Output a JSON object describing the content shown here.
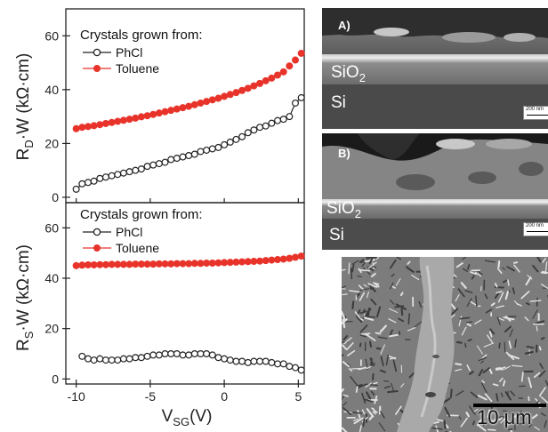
{
  "chart_data": [
    {
      "type": "scatter",
      "panel": "top",
      "ylabel_main": "R",
      "ylabel_sub": "D",
      "ylabel_rest": "·W (kΩ·cm)",
      "ylim": [
        -2,
        70
      ],
      "yticks": [
        0,
        20,
        40,
        60
      ],
      "xlim": [
        -10.7,
        5.4
      ],
      "xticks": [
        -10,
        -5,
        0,
        5
      ],
      "grid": false,
      "legend_position": "top-left",
      "legend_title": "Crystals grown from:",
      "series": [
        {
          "name": "PhCl",
          "marker": "open-circle",
          "color": "#222222",
          "x": [
            -10.0,
            -9.6,
            -9.2,
            -8.8,
            -8.4,
            -8.0,
            -7.6,
            -7.2,
            -6.8,
            -6.4,
            -6.0,
            -5.6,
            -5.2,
            -4.8,
            -4.4,
            -4.0,
            -3.6,
            -3.2,
            -2.8,
            -2.4,
            -2.0,
            -1.6,
            -1.2,
            -0.8,
            -0.4,
            0.0,
            0.4,
            0.8,
            1.2,
            1.6,
            2.0,
            2.4,
            2.8,
            3.2,
            3.6,
            4.0,
            4.4,
            4.8,
            5.2
          ],
          "y": [
            3,
            5,
            5.5,
            6,
            7,
            7.5,
            8,
            8.5,
            9,
            9.5,
            10,
            10.5,
            11.5,
            12,
            12.5,
            13,
            14,
            14.5,
            15,
            15.5,
            16,
            17,
            17.5,
            18,
            18.5,
            19.5,
            20.5,
            21.5,
            22.5,
            24,
            25,
            26,
            26.5,
            27.5,
            28.5,
            29,
            30,
            35,
            37
          ]
        },
        {
          "name": "Toluene",
          "marker": "filled-circle",
          "color": "#e8332a",
          "x": [
            -10.0,
            -9.6,
            -9.2,
            -8.8,
            -8.4,
            -8.0,
            -7.6,
            -7.2,
            -6.8,
            -6.4,
            -6.0,
            -5.6,
            -5.2,
            -4.8,
            -4.4,
            -4.0,
            -3.6,
            -3.2,
            -2.8,
            -2.4,
            -2.0,
            -1.6,
            -1.2,
            -0.8,
            -0.4,
            0.0,
            0.4,
            0.8,
            1.2,
            1.6,
            2.0,
            2.4,
            2.8,
            3.2,
            3.6,
            4.0,
            4.4,
            4.8,
            5.2
          ],
          "y": [
            25.5,
            26,
            26.3,
            26.6,
            27,
            27.4,
            27.8,
            28.2,
            28.6,
            29,
            29.4,
            29.9,
            30.3,
            30.8,
            31.3,
            31.8,
            32.3,
            32.8,
            33.3,
            33.8,
            34.4,
            35,
            35.6,
            36.2,
            36.8,
            37.5,
            38.2,
            38.9,
            39.7,
            40.5,
            41.4,
            42.3,
            43.3,
            44.3,
            45.4,
            46.6,
            48.8,
            51,
            53.5
          ]
        }
      ]
    },
    {
      "type": "scatter",
      "panel": "bottom",
      "ylabel_main": "R",
      "ylabel_sub": "S",
      "ylabel_rest": "·W (kΩ·cm)",
      "xlabel_main": "V",
      "xlabel_sub": "SG",
      "xlabel_rest": "(V)",
      "ylim": [
        -2,
        70
      ],
      "yticks": [
        0,
        20,
        40,
        60
      ],
      "xlim": [
        -10.7,
        5.4
      ],
      "xticks": [
        -10,
        -5,
        0,
        5
      ],
      "xticklabels": [
        "-10",
        "-5",
        "0",
        "5"
      ],
      "grid": false,
      "legend_position": "top-left",
      "legend_title": "Crystals grown from:",
      "series": [
        {
          "name": "PhCl",
          "marker": "open-circle",
          "color": "#222222",
          "x": [
            -9.6,
            -9.2,
            -8.8,
            -8.4,
            -8.0,
            -7.6,
            -7.2,
            -6.8,
            -6.4,
            -6.0,
            -5.6,
            -5.2,
            -4.8,
            -4.4,
            -4.0,
            -3.6,
            -3.2,
            -2.8,
            -2.4,
            -2.0,
            -1.6,
            -1.2,
            -0.8,
            -0.4,
            0.0,
            0.4,
            0.8,
            1.2,
            1.6,
            2.0,
            2.4,
            2.8,
            3.2,
            3.6,
            4.0,
            4.4,
            4.8,
            5.2
          ],
          "y": [
            9,
            8,
            7.5,
            8,
            7.5,
            7.5,
            7.5,
            8,
            8,
            8.5,
            8.5,
            9,
            9.5,
            9.5,
            10,
            10,
            10,
            9.5,
            9.5,
            10,
            10,
            10,
            9.5,
            8.5,
            8,
            7.5,
            7,
            7,
            6.5,
            7,
            7,
            7,
            6.5,
            6,
            6,
            5,
            4.5,
            3.5
          ]
        },
        {
          "name": "Toluene",
          "marker": "filled-circle",
          "color": "#e8332a",
          "x": [
            -10.0,
            -9.6,
            -9.2,
            -8.8,
            -8.4,
            -8.0,
            -7.6,
            -7.2,
            -6.8,
            -6.4,
            -6.0,
            -5.6,
            -5.2,
            -4.8,
            -4.4,
            -4.0,
            -3.6,
            -3.2,
            -2.8,
            -2.4,
            -2.0,
            -1.6,
            -1.2,
            -0.8,
            -0.4,
            0.0,
            0.4,
            0.8,
            1.2,
            1.6,
            2.0,
            2.4,
            2.8,
            3.2,
            3.6,
            4.0,
            4.4,
            4.8,
            5.2
          ],
          "y": [
            45,
            45.2,
            45.3,
            45.3,
            45.4,
            45.4,
            45.5,
            45.5,
            45.5,
            45.5,
            45.6,
            45.6,
            45.6,
            45.6,
            45.7,
            45.7,
            45.7,
            45.8,
            45.8,
            45.8,
            45.9,
            45.9,
            46,
            46,
            46.1,
            46.2,
            46.3,
            46.4,
            46.5,
            46.6,
            46.7,
            46.8,
            47,
            47.2,
            47.4,
            47.6,
            47.9,
            48.3,
            48.8
          ]
        }
      ]
    }
  ],
  "images": {
    "panel_a": {
      "label": "A)",
      "oxide_text": "SiO",
      "oxide_sub": "2",
      "substrate_text": "Si",
      "scale_text": "200 nm"
    },
    "panel_b": {
      "label": "B)",
      "oxide_text": "SiO",
      "oxide_sub": "2",
      "substrate_text": "Si",
      "scale_text": "200 nm"
    },
    "panel_c": {
      "scale_text": "10 μm"
    }
  },
  "colors": {
    "phcl": "#222222",
    "toluene": "#e8332a",
    "sem_dark": "#2a2a2a",
    "sem_mid": "#6a6a6a",
    "sem_light": "#b8b8b8"
  }
}
